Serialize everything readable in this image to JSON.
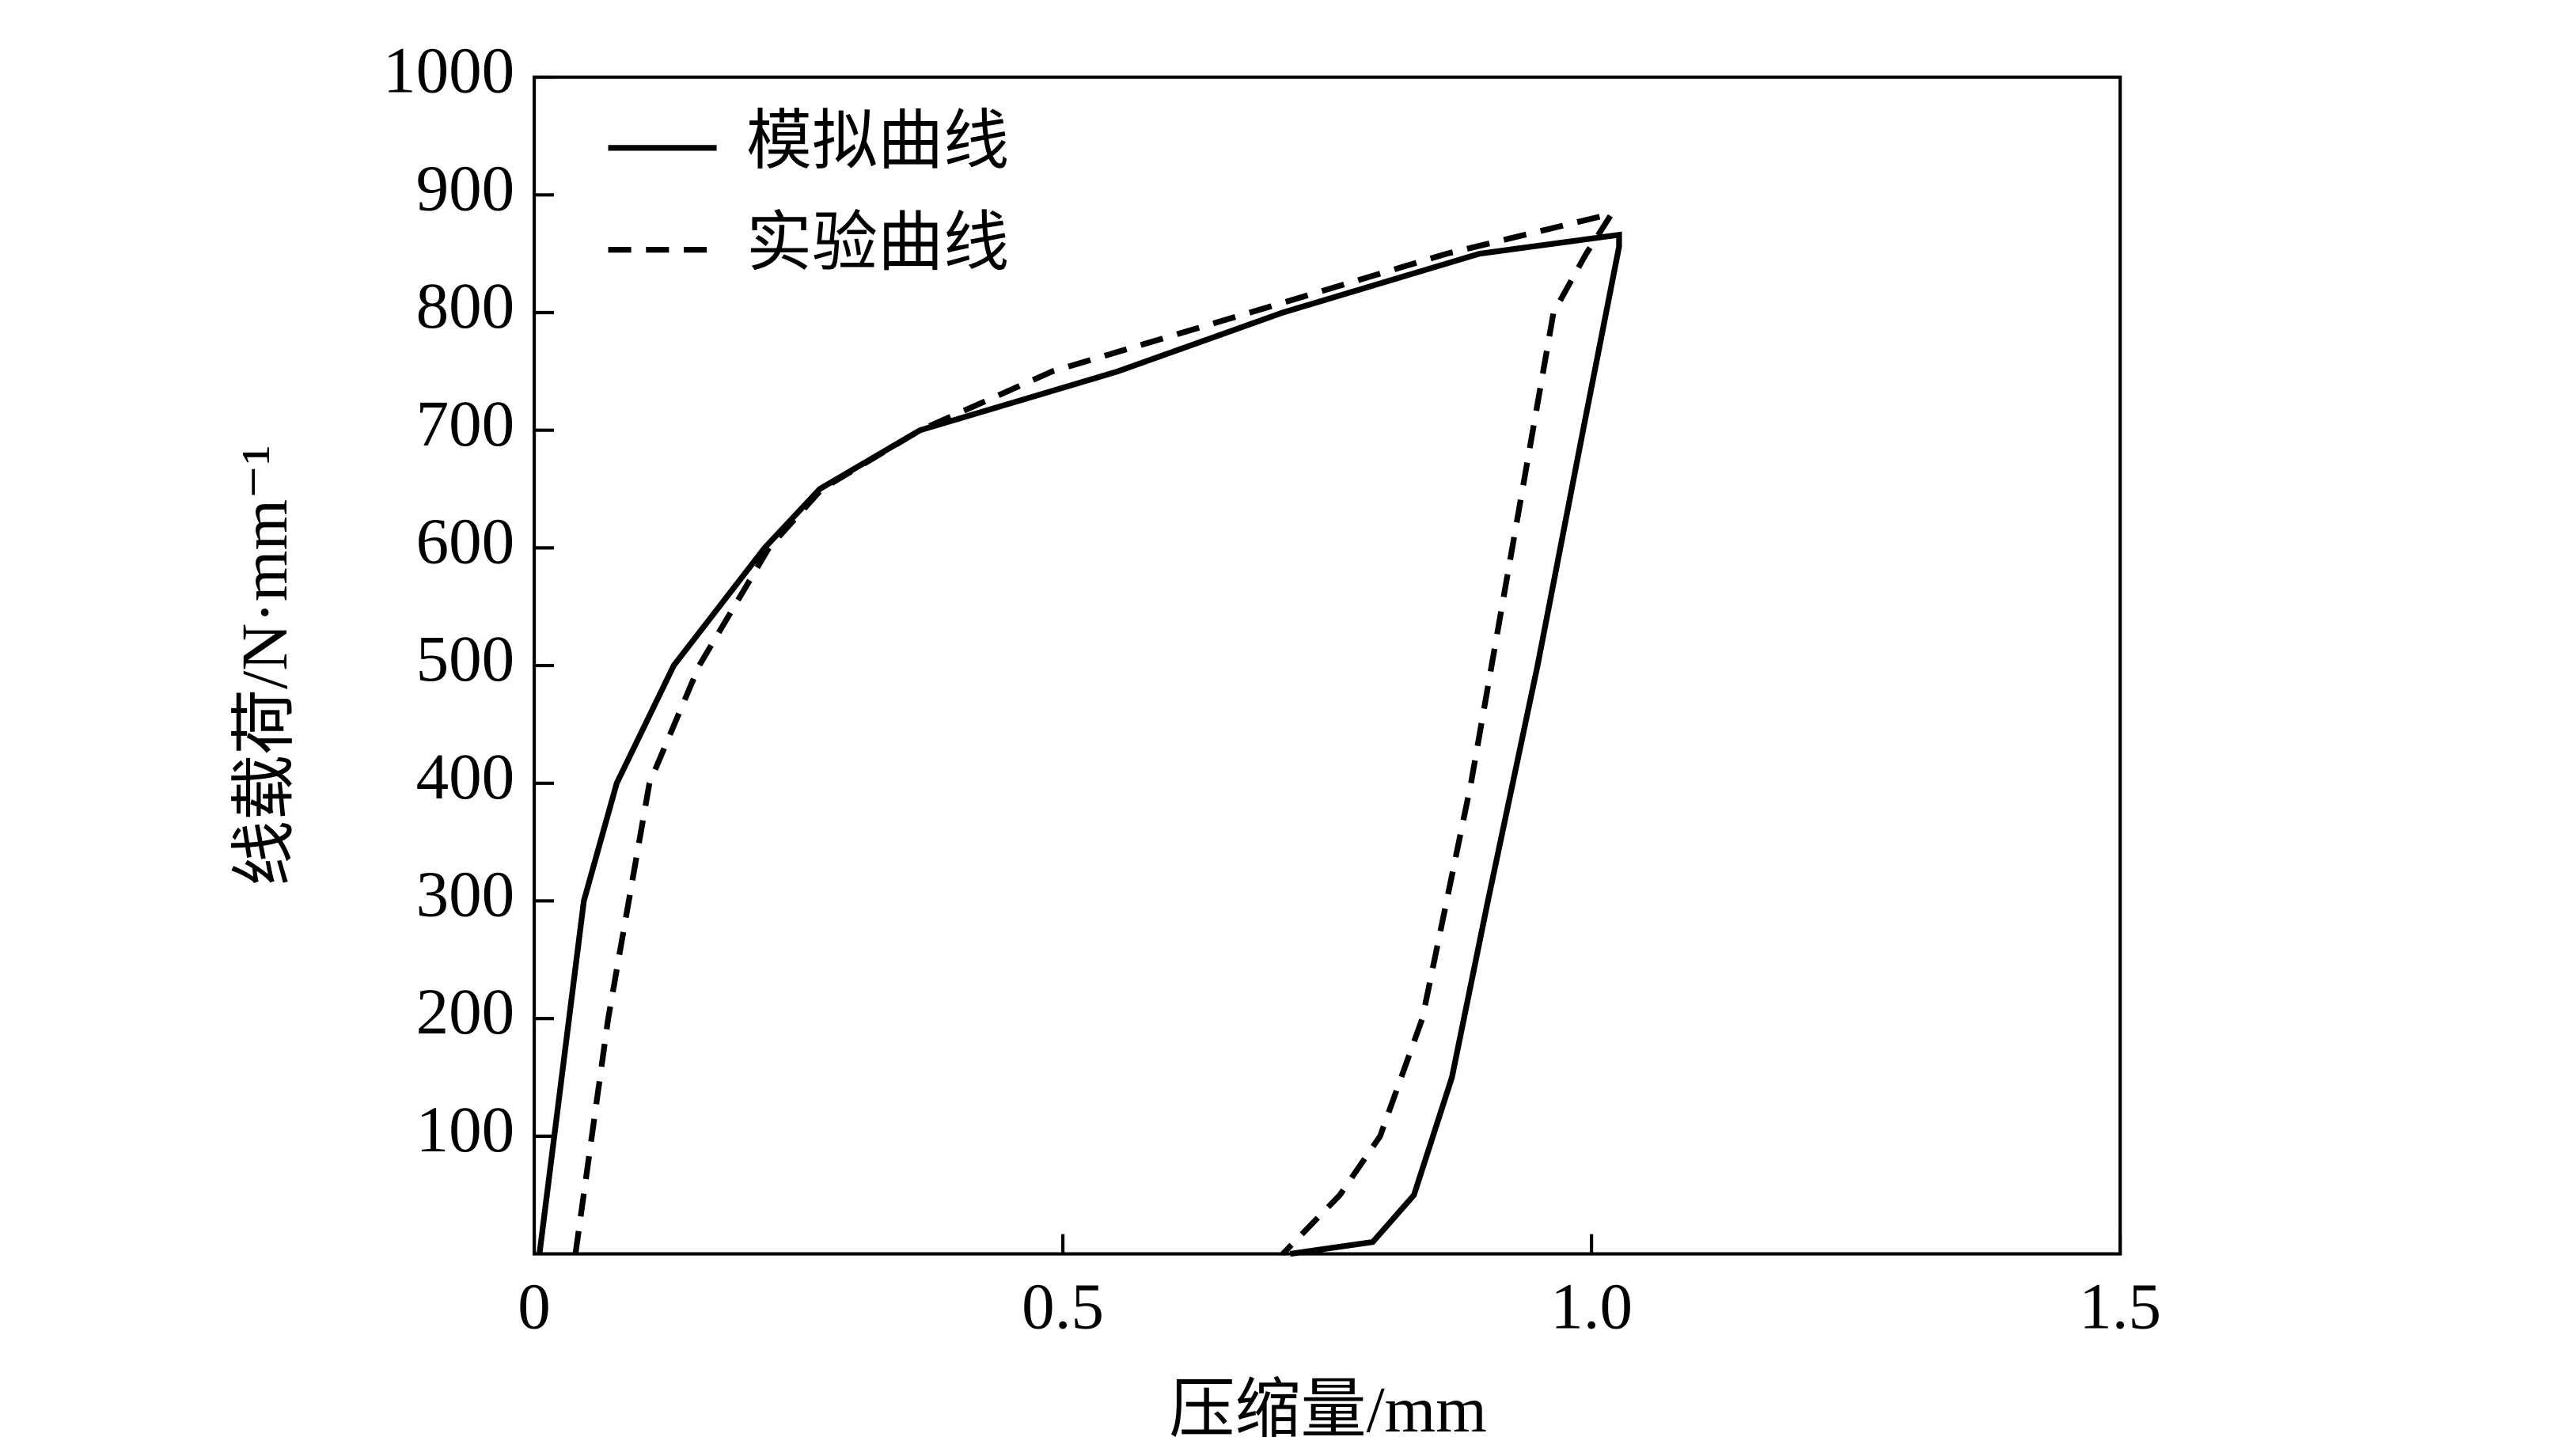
{
  "chart_data": {
    "type": "line",
    "x_label": "压缩量/mm",
    "y_label": "线载荷/N·mm⁻¹",
    "xlim": [
      0,
      1.5
    ],
    "xticks": [
      0,
      0.5,
      {
        "value": 1,
        "label": "1.0"
      },
      1.5
    ],
    "ylim": [
      0,
      1000
    ],
    "yticks": [
      100,
      200,
      300,
      400,
      500,
      600,
      700,
      800,
      900,
      1000
    ],
    "legend": "upper-left",
    "series": [
      {
        "name": "模拟曲线",
        "color": "#000000",
        "dash": "solid",
        "x": [
          0.005,
          0.047,
          0.078,
          0.132,
          0.218,
          0.27,
          0.365,
          0.552,
          0.708,
          0.894,
          1.026,
          1.026,
          0.992,
          0.949,
          0.902,
          0.868,
          0.832,
          0.793,
          0.715
        ],
        "values": [
          0,
          300,
          400,
          500,
          600,
          650,
          700,
          750,
          800,
          850,
          866,
          856,
          700,
          500,
          300,
          150,
          50,
          10,
          0
        ]
      },
      {
        "name": "实验曲线",
        "color": "#000000",
        "dash": "dashed",
        "x": [
          0.039,
          0.07,
          0.109,
          0.156,
          0.222,
          0.272,
          0.365,
          0.49,
          0.677,
          0.863,
          1.019,
          0.995,
          0.964,
          0.925,
          0.886,
          0.84,
          0.8,
          0.762,
          0.708
        ],
        "values": [
          0,
          200,
          400,
          500,
          600,
          650,
          700,
          750,
          800,
          850,
          884,
          850,
          800,
          600,
          400,
          200,
          100,
          50,
          0
        ]
      }
    ]
  }
}
